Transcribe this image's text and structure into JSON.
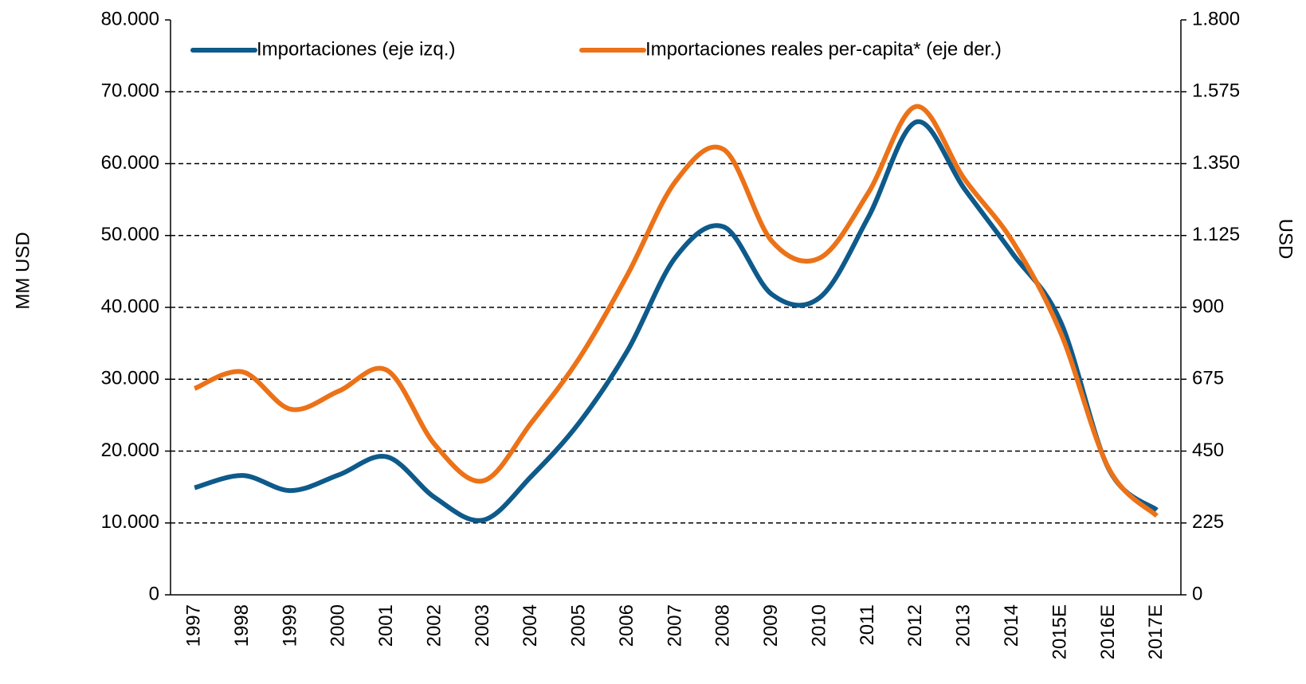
{
  "chart_data": {
    "type": "line",
    "y_label": "MM USD",
    "y2_label": "USD",
    "categories": [
      "1997",
      "1998",
      "1999",
      "2000",
      "2001",
      "2002",
      "2003",
      "2004",
      "2005",
      "2006",
      "2007",
      "2008",
      "2009",
      "2010",
      "2011",
      "2012",
      "2013",
      "2014",
      "2015E",
      "2016E",
      "2017E"
    ],
    "series": [
      {
        "name": "Importaciones (eje izq.)",
        "color": "#0e5a8a",
        "values": [
          14900,
          16600,
          14500,
          16700,
          19200,
          13500,
          10400,
          16500,
          24000,
          34000,
          47000,
          51200,
          41800,
          41400,
          52500,
          65800,
          56500,
          47500,
          38000,
          17500,
          11800
        ]
      },
      {
        "name": "Importaciones reales per-capita* (eje der.)",
        "color": "#ec7218",
        "axis": "y2",
        "values": [
          646,
          698,
          581,
          638,
          703,
          469,
          357,
          539,
          742,
          1003,
          1295,
          1394,
          1107,
          1055,
          1258,
          1529,
          1302,
          1107,
          821,
          396,
          247
        ]
      }
    ],
    "ylim": [
      0,
      80000
    ],
    "yticks": [
      0,
      {
        "value": 10000,
        "label": "10.000"
      },
      {
        "value": 20000,
        "label": "20.000"
      },
      {
        "value": 30000,
        "label": "30.000"
      },
      {
        "value": 40000,
        "label": "40.000"
      },
      {
        "value": 50000,
        "label": "50.000"
      },
      {
        "value": 60000,
        "label": "60.000"
      },
      {
        "value": 70000,
        "label": "70.000"
      },
      {
        "value": 80000,
        "label": "80.000"
      }
    ],
    "y2lim": [
      0,
      1800
    ],
    "y2ticks": [
      0,
      225,
      450,
      675,
      900,
      {
        "value": 1125,
        "label": "1.125"
      },
      {
        "value": 1350,
        "label": "1.350"
      },
      {
        "value": 1575,
        "label": "1.575"
      },
      {
        "value": 1800,
        "label": "1.800"
      }
    ],
    "grid": true,
    "legend": "top"
  }
}
